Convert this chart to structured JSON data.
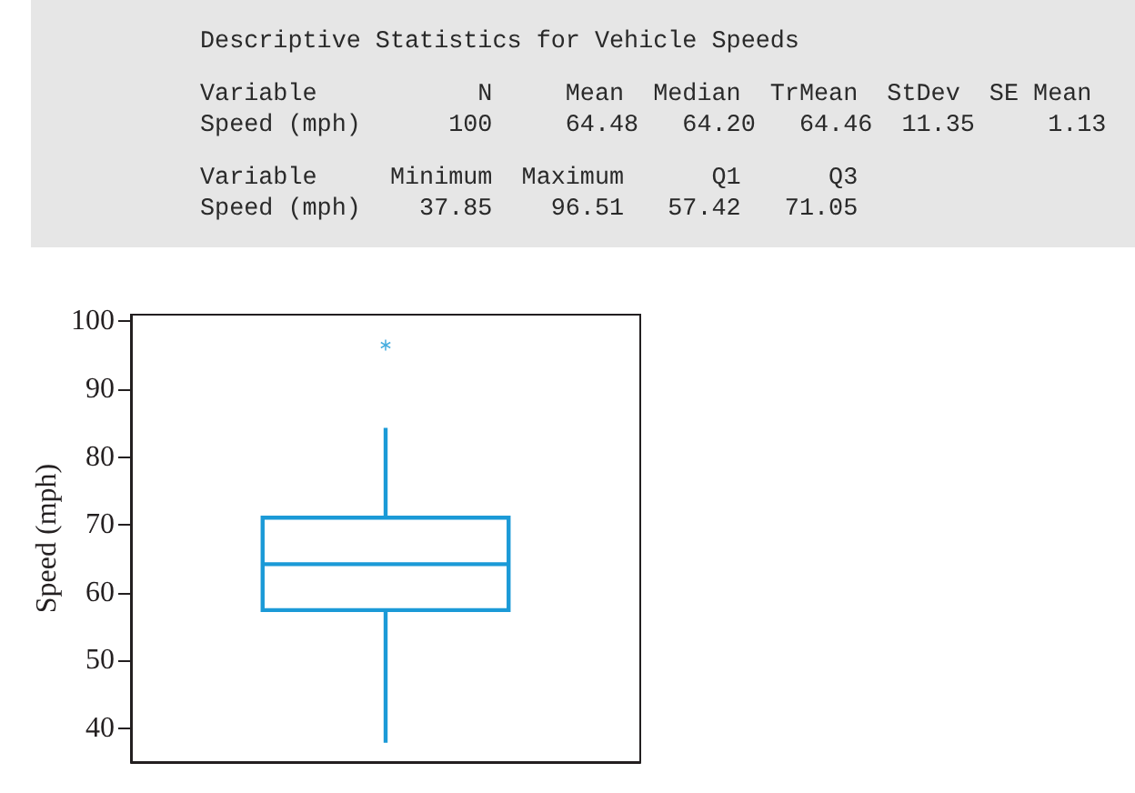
{
  "chart_data": {
    "type": "box",
    "title": "Descriptive Statistics for Vehicle Speeds",
    "annotations": [
      "Variable           N     Mean  Median  TrMean  StDev  SE Mean",
      "Speed (mph)      100     64.48   64.20   64.46  11.35     1.13",
      "Variable     Minimum  Maximum      Q1      Q3",
      "Speed (mph)    37.85    96.51   57.42   71.05"
    ],
    "ylabel": "Speed (mph)",
    "categories": [
      null
    ],
    "color": "#1b9ad7",
    "boxes": [
      {
        "low": 37.85,
        "q1": 57.42,
        "median": 64.2,
        "q3": 71.05,
        "high": 84.3,
        "outliers": [
          96.51
        ]
      }
    ],
    "ylim": [
      35,
      101
    ],
    "yticks": [
      40,
      50,
      60,
      70,
      80,
      90,
      100
    ],
    "tick_labels": "y",
    "marker": "star"
  }
}
